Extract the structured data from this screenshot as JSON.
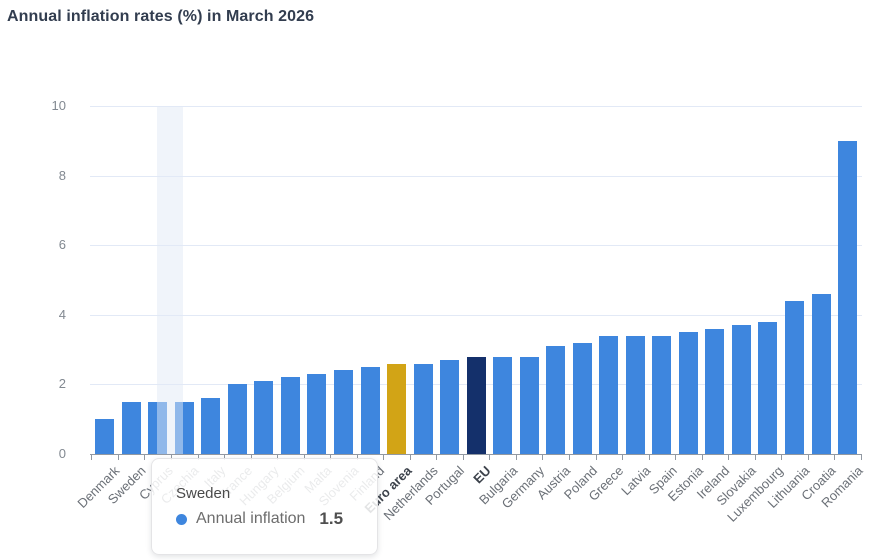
{
  "title": "Annual inflation rates (%) in March 2026",
  "colors": {
    "bar": "#3e86de",
    "grid": "#e2e9f6",
    "axis": "#9299a2",
    "y_label": "#828991",
    "x_label": "#6b7077",
    "x_label_emphasis": "#3c424b",
    "highlight_band": "rgba(226,233,246,0.5)",
    "tooltip_marker": "#3e86de"
  },
  "chart_data": {
    "type": "bar",
    "title": "Annual inflation rates (%) in March 2026",
    "series_name": "Annual inflation",
    "categories": [
      "Denmark",
      "Sweden",
      "Cyprus",
      "Czechia",
      "Italy",
      "France",
      "Hungary",
      "Belgium",
      "Malta",
      "Slovenia",
      "Finland",
      "Euro area",
      "Netherlands",
      "Portugal",
      "EU",
      "Bulgaria",
      "Germany",
      "Austria",
      "Poland",
      "Greece",
      "Latvia",
      "Spain",
      "Estonia",
      "Ireland",
      "Slovakia",
      "Luxembourg",
      "Lithuania",
      "Croatia",
      "Romania"
    ],
    "values": [
      1.0,
      1.5,
      1.5,
      1.5,
      1.6,
      2.0,
      2.1,
      2.2,
      2.3,
      2.4,
      2.5,
      2.6,
      2.6,
      2.7,
      2.8,
      2.8,
      2.8,
      3.1,
      3.2,
      3.4,
      3.4,
      3.4,
      3.5,
      3.6,
      3.7,
      3.8,
      4.4,
      4.6,
      9.0
    ],
    "ylim": [
      0,
      10
    ],
    "yticks": [
      0,
      2,
      4,
      6,
      8,
      10
    ],
    "xlabel": "",
    "ylabel": "",
    "grid": true,
    "legend_position": "none",
    "emphasized_categories": [
      "Euro area",
      "EU"
    ],
    "special_colors": {
      "Euro area": "#d2a416",
      "EU": "#14306b"
    },
    "highlighted_region_categories": [
      "Cyprus",
      "Czechia"
    ]
  },
  "tooltip": {
    "category": "Sweden",
    "series": "Annual inflation",
    "value": "1.5"
  }
}
